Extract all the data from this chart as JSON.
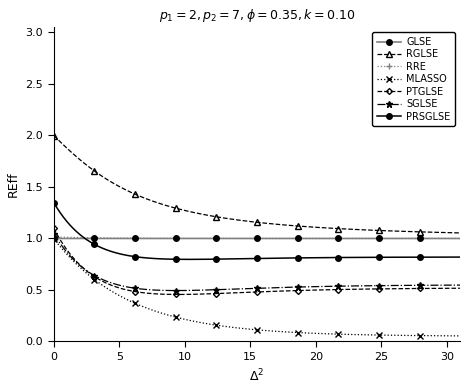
{
  "title": "$p_1 = 2, p_2 = 7, \\phi = 0.35, k = 0.10$",
  "xlabel": "$\\Delta^2$",
  "ylabel": "REff",
  "xlim": [
    0,
    31
  ],
  "ylim": [
    0.0,
    3.05
  ],
  "xticks": [
    0,
    5,
    10,
    15,
    20,
    25,
    30
  ],
  "yticks": [
    0.0,
    0.5,
    1.0,
    1.5,
    2.0,
    2.5,
    3.0
  ],
  "p1": 2,
  "p2": 7,
  "phi": 0.35,
  "k": 0.1,
  "legend_entries": [
    "GLSE",
    "RGLSE",
    "RRE",
    "MLASSO",
    "PTGLSE",
    "SGLSE",
    "PRSGLSE"
  ]
}
